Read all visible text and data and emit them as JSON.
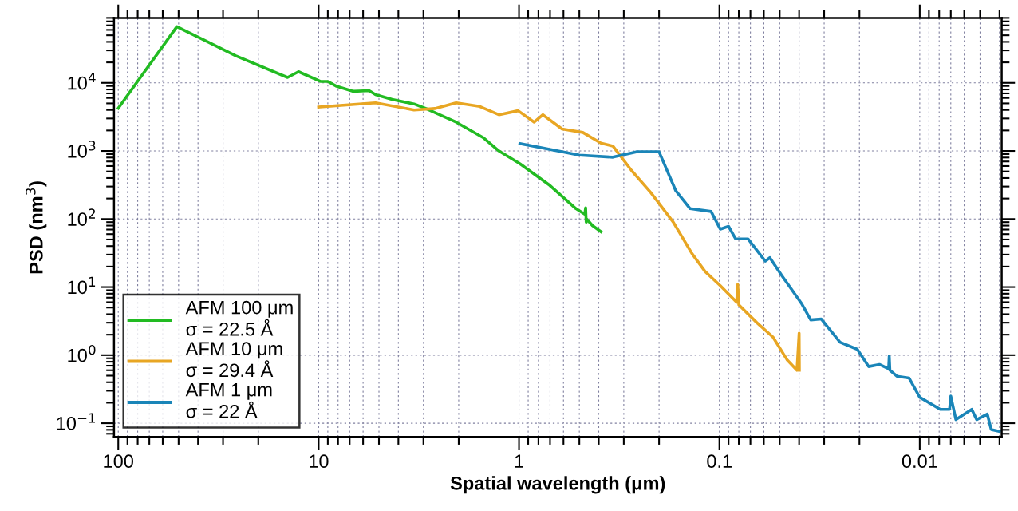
{
  "chart_data": {
    "type": "line",
    "xlabel": "Spatial wavelength (μm)",
    "ylabel": "PSD (nm$^{3}$)",
    "log": "xy",
    "grid": true,
    "legend": "bottom left",
    "line_style": "solid",
    "xlim": [
      105,
      0.0039
    ],
    "ylim": [
      0.063,
      90000
    ],
    "xticks": [
      100,
      10,
      1,
      0.1,
      0.01
    ],
    "yticks": [
      {
        "value": 0.1,
        "label": "10$^{−1}$"
      },
      {
        "value": 1,
        "label": "10$^{0}$"
      },
      {
        "value": 10,
        "label": "10$^{1}$"
      },
      {
        "value": 100,
        "label": "10$^{2}$"
      },
      {
        "value": 1000,
        "label": "10$^{3}$"
      },
      {
        "value": 10000,
        "label": "10$^{4}$"
      }
    ],
    "series": [
      {
        "name": "AFM 100 μm\nσ = 22.5 Å",
        "color": "#22bb22",
        "x": [
          100,
          51,
          25.9,
          14.3,
          12.6,
          9.8,
          9,
          8.2,
          6.7,
          5.6,
          5.2,
          4.3,
          3.34,
          2.86,
          2.06,
          1.5,
          1.26,
          0.99,
          0.71,
          0.52,
          0.47,
          0.465,
          0.462,
          0.46,
          0.43,
          0.39
        ],
        "values": [
          4240,
          67000,
          25000,
          12000,
          14600,
          10500,
          10500,
          9000,
          7500,
          7700,
          6700,
          5700,
          4900,
          4100,
          2650,
          1550,
          1000,
          650,
          320,
          142,
          118,
          146,
          90,
          100,
          80,
          65
        ]
      },
      {
        "name": "AFM 10 μm\nσ = 29.4 Å",
        "color": "#e8a623",
        "x": [
          10,
          5.2,
          3.34,
          2.63,
          2.06,
          1.57,
          1.26,
          1.01,
          0.84,
          0.76,
          0.61,
          0.48,
          0.39,
          0.34,
          0.275,
          0.22,
          0.17,
          0.137,
          0.118,
          0.099,
          0.082,
          0.081,
          0.08,
          0.065,
          0.054,
          0.046,
          0.041,
          0.04,
          0.0399
        ],
        "values": [
          4400,
          5100,
          4000,
          4200,
          5100,
          4500,
          3400,
          3900,
          2650,
          3400,
          2100,
          1870,
          1300,
          1180,
          520,
          245,
          90,
          31,
          17,
          10.5,
          6,
          10.9,
          5.5,
          3.0,
          1.84,
          0.86,
          0.6,
          2.1,
          0.6
        ]
      },
      {
        "name": "AFM 1 μm\nσ = 22 Å",
        "color": "#1a85b8",
        "x": [
          0.99,
          0.5,
          0.34,
          0.26,
          0.2,
          0.165,
          0.14,
          0.11,
          0.099,
          0.09,
          0.083,
          0.072,
          0.059,
          0.056,
          0.049,
          0.039,
          0.035,
          0.031,
          0.025,
          0.0205,
          0.018,
          0.0159,
          0.0143,
          0.0142,
          0.0141,
          0.013,
          0.0113,
          0.01,
          0.0079,
          0.0071,
          0.007,
          0.0066,
          0.0055,
          0.0052,
          0.0046,
          0.0044,
          0.004
        ],
        "values": [
          1280,
          870,
          810,
          970,
          970,
          260,
          142,
          129,
          71,
          78,
          51,
          51,
          24,
          27,
          15,
          5.8,
          3.3,
          3.4,
          1.55,
          1.22,
          0.68,
          0.73,
          0.63,
          0.97,
          0.6,
          0.49,
          0.46,
          0.24,
          0.16,
          0.16,
          0.25,
          0.113,
          0.16,
          0.113,
          0.136,
          0.081,
          0.076
        ]
      }
    ]
  }
}
